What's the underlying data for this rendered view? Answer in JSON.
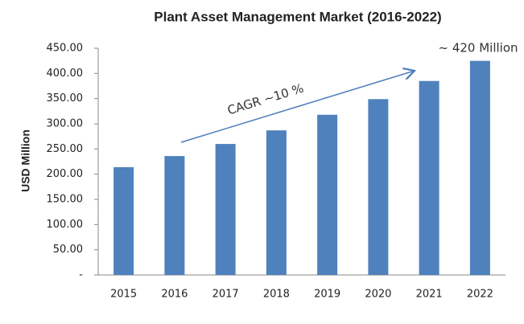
{
  "chart_data": {
    "type": "bar",
    "title": "Plant Asset Management Market (2016-2022)",
    "y_label": "USD Million",
    "categories": [
      "2015",
      "2016",
      "2017",
      "2018",
      "2019",
      "2020",
      "2021",
      "2022"
    ],
    "values": [
      214,
      236,
      260,
      287,
      318,
      349,
      385,
      425
    ],
    "color": "#4f81bd",
    "ylim": [
      0,
      450
    ],
    "yticks": [
      {
        "value": 0,
        "label": "-"
      },
      {
        "value": 50,
        "label": "50.00"
      },
      {
        "value": 100,
        "label": "100.00"
      },
      {
        "value": 150,
        "label": "150.00"
      },
      {
        "value": 200,
        "label": "200.00"
      },
      {
        "value": 250,
        "label": "250.00"
      },
      {
        "value": 300,
        "label": "300.00"
      },
      {
        "value": 350,
        "label": "350.00"
      },
      {
        "value": 400,
        "label": "400.00"
      },
      {
        "value": 450,
        "label": "450.00"
      }
    ],
    "grid": false,
    "annotations": [
      "CAGR ~10 %",
      "~ 420 Million"
    ]
  }
}
